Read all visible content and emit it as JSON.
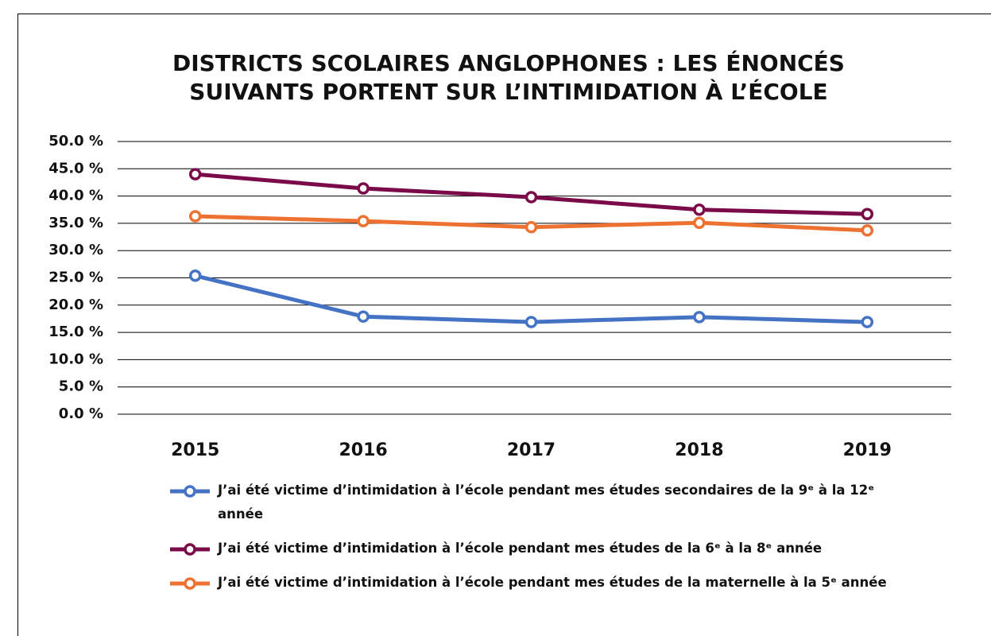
{
  "chart_data": {
    "type": "line",
    "title": "DISTRICTS SCOLAIRES ANGLOPHONES : LES ÉNONCÉS SUIVANTS PORTENT SUR L’INTIMIDATION À L’ÉCOLE",
    "categories": [
      "2015",
      "2016",
      "2017",
      "2018",
      "2019"
    ],
    "series": [
      {
        "name": "J’ai été victime d’intimidation à l’école pendant mes études secondaires de la 9ᵉ à la 12ᵉ année",
        "color": "#4472c4",
        "values": [
          25.4,
          17.9,
          16.9,
          17.8,
          16.9
        ]
      },
      {
        "name": "J’ai été victime d’intimidation à l’école pendant mes études de la 6ᵉ à la 8ᵉ année",
        "color": "#7b0a4a",
        "values": [
          44.0,
          41.4,
          39.8,
          37.5,
          36.7
        ]
      },
      {
        "name": "J’ai été victime d’intimidation à l’école pendant mes études de la maternelle à la 5ᵉ année",
        "color": "#ed7131",
        "values": [
          36.3,
          35.4,
          34.3,
          35.1,
          33.7
        ]
      }
    ],
    "ylim": [
      0,
      50
    ],
    "yticks": [
      {
        "value": 0,
        "label": "0.0 %"
      },
      {
        "value": 5,
        "label": "5.0 %"
      },
      {
        "value": 10,
        "label": "10.0 %"
      },
      {
        "value": 15,
        "label": "15.0 %"
      },
      {
        "value": 20,
        "label": "20.0 %"
      },
      {
        "value": 25,
        "label": "25.0 %"
      },
      {
        "value": 30,
        "label": "30.0 %"
      },
      {
        "value": 35,
        "label": "35.0 %"
      },
      {
        "value": 40,
        "label": "40.0 %"
      },
      {
        "value": 45,
        "label": "45.0 %"
      },
      {
        "value": 50,
        "label": "50.0 %"
      }
    ],
    "grid": true,
    "legend": "bottom"
  }
}
